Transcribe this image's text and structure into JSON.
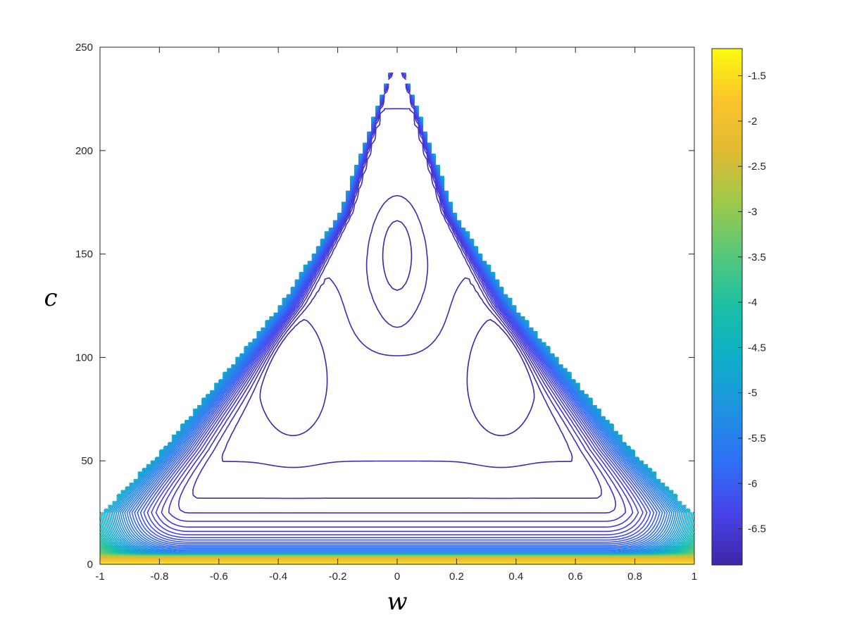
{
  "chart_data": {
    "type": "contour",
    "title": "",
    "xlabel": "w",
    "ylabel": "c",
    "xlim": [
      -1,
      1
    ],
    "ylim": [
      0,
      250
    ],
    "xticks": [
      -1,
      -0.8,
      -0.6,
      -0.4,
      -0.2,
      0,
      0.2,
      0.4,
      0.6,
      0.8,
      1
    ],
    "yticks": [
      0,
      50,
      100,
      150,
      200,
      250
    ],
    "grid": false,
    "colorbar": {
      "range": [
        -6.9,
        -1.2
      ],
      "ticks": [
        -1.5,
        -2,
        -2.5,
        -3,
        -3.5,
        -4,
        -4.5,
        -5,
        -5.5,
        -6,
        -6.5
      ],
      "colormap": [
        "#3e26a8",
        "#4743e9",
        "#2e70f5",
        "#1f92e0",
        "#0eaec9",
        "#1bbfa4",
        "#56c87a",
        "#9dc94b",
        "#dfba33",
        "#fbc42a",
        "#f9fb0e"
      ]
    },
    "levels": {
      "min": -6.9,
      "max": -1.2,
      "count": 70
    },
    "features": {
      "boundary_left": [
        [
          -1,
          25
        ],
        [
          -0.8,
          55
        ],
        [
          -0.6,
          90
        ],
        [
          -0.4,
          125
        ],
        [
          -0.2,
          170
        ],
        [
          0,
          250
        ]
      ],
      "boundary_right": [
        [
          0,
          250
        ],
        [
          0.2,
          170
        ],
        [
          0.4,
          125
        ],
        [
          0.6,
          90
        ],
        [
          0.8,
          55
        ],
        [
          1,
          25
        ]
      ],
      "local_minima": [
        {
          "w": -0.35,
          "c": 95,
          "label": ""
        },
        {
          "w": 0.35,
          "c": 95,
          "label": ""
        },
        {
          "w": 0,
          "c": 150,
          "label": ""
        }
      ]
    }
  }
}
